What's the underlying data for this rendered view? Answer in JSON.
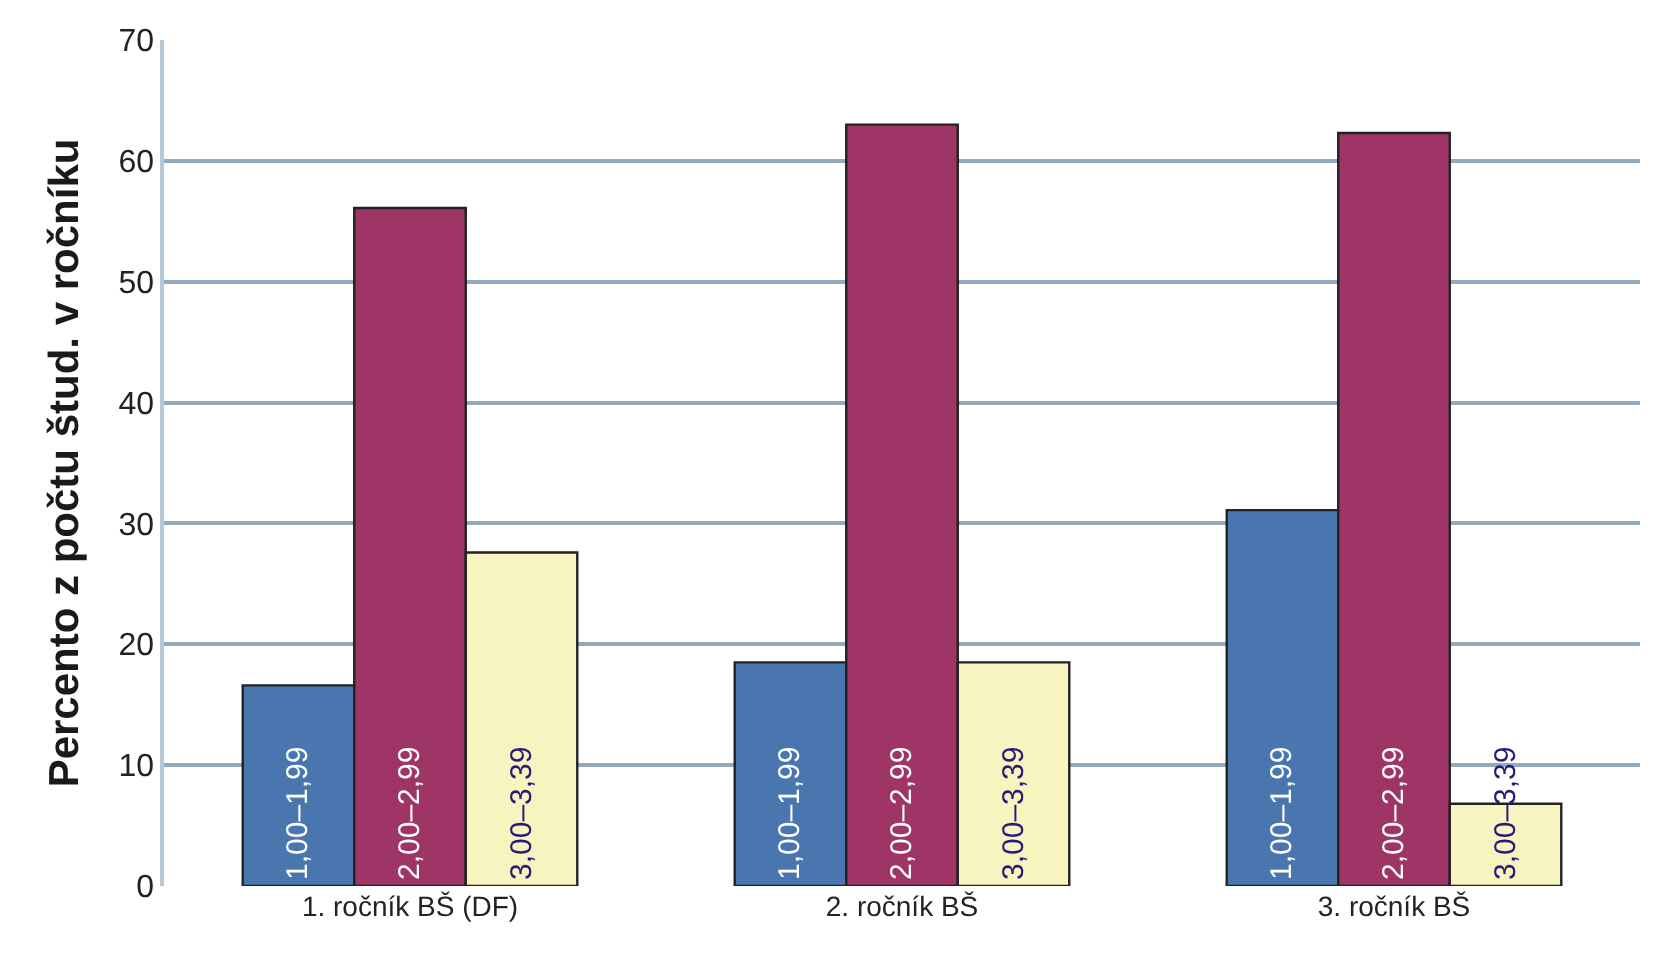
{
  "chart_data": {
    "type": "bar",
    "ylabel": "Percento z počtu štud. v ročníku",
    "categories": [
      "1. ročník BŠ (DF)",
      "2. ročník BŠ",
      "3. ročník BŠ"
    ],
    "series": [
      {
        "name": "1,00–1,99",
        "color": "#4a76b0",
        "values": [
          16.6,
          18.5,
          31.1
        ]
      },
      {
        "name": "2,00–2,99",
        "color": "#9e3566",
        "values": [
          56.1,
          63.0,
          62.3
        ]
      },
      {
        "name": "3,00–3,39",
        "color": "#f8f4c0",
        "values": [
          27.6,
          18.5,
          6.8
        ]
      }
    ],
    "ylim": [
      0,
      70
    ],
    "yticks": [
      0,
      10,
      20,
      30,
      40,
      50,
      60,
      70
    ],
    "grid": "y",
    "legend": false
  }
}
